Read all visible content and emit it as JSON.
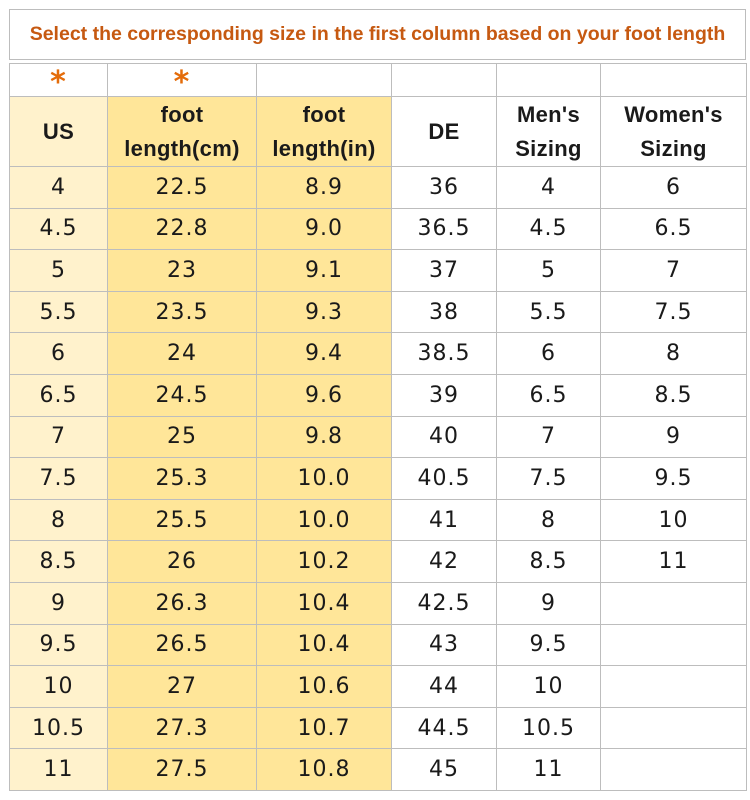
{
  "title": "Select the corresponding size in the first column based on your foot length",
  "marks": {
    "us": "*",
    "cm": "*"
  },
  "headers": {
    "us": [
      "US"
    ],
    "cm": [
      "foot",
      "length(cm)"
    ],
    "in": [
      "foot",
      "length(in)"
    ],
    "de": [
      "DE"
    ],
    "men": [
      "Men's",
      "Sizing"
    ],
    "women": [
      "Women's",
      "Sizing"
    ]
  },
  "rows": [
    {
      "us": "4",
      "cm": "22.5",
      "in": "8.9",
      "de": "36",
      "men": "4",
      "women": "6"
    },
    {
      "us": "4.5",
      "cm": "22.8",
      "in": "9.0",
      "de": "36.5",
      "men": "4.5",
      "women": "6.5"
    },
    {
      "us": "5",
      "cm": "23",
      "in": "9.1",
      "de": "37",
      "men": "5",
      "women": "7"
    },
    {
      "us": "5.5",
      "cm": "23.5",
      "in": "9.3",
      "de": "38",
      "men": "5.5",
      "women": "7.5"
    },
    {
      "us": "6",
      "cm": "24",
      "in": "9.4",
      "de": "38.5",
      "men": "6",
      "women": "8"
    },
    {
      "us": "6.5",
      "cm": "24.5",
      "in": "9.6",
      "de": "39",
      "men": "6.5",
      "women": "8.5"
    },
    {
      "us": "7",
      "cm": "25",
      "in": "9.8",
      "de": "40",
      "men": "7",
      "women": "9"
    },
    {
      "us": "7.5",
      "cm": "25.3",
      "in": "10.0",
      "de": "40.5",
      "men": "7.5",
      "women": "9.5"
    },
    {
      "us": "8",
      "cm": "25.5",
      "in": "10.0",
      "de": "41",
      "men": "8",
      "women": "10"
    },
    {
      "us": "8.5",
      "cm": "26",
      "in": "10.2",
      "de": "42",
      "men": "8.5",
      "women": "11"
    },
    {
      "us": "9",
      "cm": "26.3",
      "in": "10.4",
      "de": "42.5",
      "men": "9",
      "women": ""
    },
    {
      "us": "9.5",
      "cm": "26.5",
      "in": "10.4",
      "de": "43",
      "men": "9.5",
      "women": ""
    },
    {
      "us": "10",
      "cm": "27",
      "in": "10.6",
      "de": "44",
      "men": "10",
      "women": ""
    },
    {
      "us": "10.5",
      "cm": "27.3",
      "in": "10.7",
      "de": "44.5",
      "men": "10.5",
      "women": ""
    },
    {
      "us": "11",
      "cm": "27.5",
      "in": "10.8",
      "de": "45",
      "men": "11",
      "women": ""
    }
  ],
  "colors": {
    "title": "#c65911",
    "star": "#e46c0a",
    "us_fill": "#fff2cc",
    "foot_fill": "#ffe699",
    "grid": "#bdbdbd"
  }
}
